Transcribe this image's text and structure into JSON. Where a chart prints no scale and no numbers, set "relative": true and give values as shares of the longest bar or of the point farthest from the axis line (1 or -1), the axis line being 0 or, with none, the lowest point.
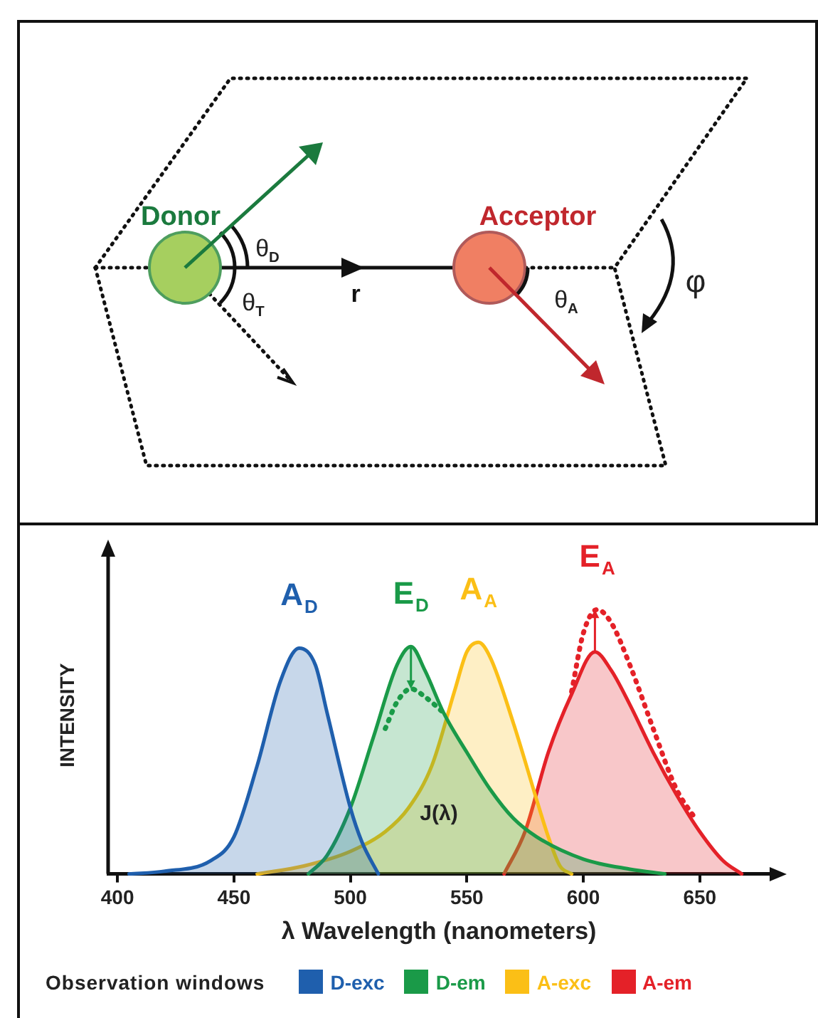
{
  "chart_data": [
    {
      "type": "other",
      "annotations": [
        "Donor",
        "θ$_{D}$",
        "θ$_{T}$",
        "r",
        "Acceptor",
        "θ$_{A}$",
        "φ"
      ]
    },
    {
      "type": "area",
      "relative": true,
      "xlabel": "λ Wavelength (nanometers)",
      "ylabel": "INTENSITY",
      "xlim": [
        396,
        680
      ],
      "xticks": [
        400,
        450,
        500,
        550,
        600,
        650
      ],
      "legend": "bottom",
      "legend_title": "Observation windows",
      "series": [
        {
          "name": "D-exc",
          "color": "#1f5fad",
          "x": [
            405,
            420,
            440,
            450,
            460,
            470,
            478,
            485,
            490,
            500,
            505,
            512
          ],
          "values": [
            0,
            0.01,
            0.05,
            0.14,
            0.41,
            0.73,
            0.854,
            0.79,
            0.61,
            0.25,
            0.12,
            0
          ]
        },
        {
          "name": "D-em",
          "color": "#1a9a48",
          "x": [
            482,
            490,
            500,
            510,
            520,
            526,
            532,
            540,
            550,
            560,
            570,
            580,
            600,
            620,
            635
          ],
          "values": [
            0,
            0.07,
            0.25,
            0.52,
            0.79,
            0.86,
            0.77,
            0.61,
            0.46,
            0.32,
            0.21,
            0.14,
            0.056,
            0.018,
            0
          ]
        },
        {
          "name": "A-exc",
          "color": "#fbbf16",
          "x": [
            460,
            480,
            500,
            515,
            525,
            535,
            545,
            550,
            555,
            560,
            570,
            580,
            585,
            590,
            595
          ],
          "values": [
            0,
            0.03,
            0.085,
            0.16,
            0.25,
            0.41,
            0.7,
            0.84,
            0.876,
            0.82,
            0.57,
            0.28,
            0.14,
            0.03,
            0
          ]
        },
        {
          "name": "A-em",
          "color": "#e42128",
          "x": [
            566,
            575,
            585,
            595,
            605,
            612,
            620,
            630,
            640,
            650,
            660,
            668
          ],
          "values": [
            0,
            0.16,
            0.46,
            0.68,
            0.84,
            0.77,
            0.64,
            0.46,
            0.3,
            0.16,
            0.05,
            0
          ]
        },
        {
          "type": "line",
          "line_style": "dotted",
          "color": "#1a9a48",
          "x": [
            515,
            520,
            526,
            532,
            540
          ],
          "values": [
            0.55,
            0.65,
            0.7,
            0.67,
            0.61
          ]
        },
        {
          "type": "line",
          "line_style": "dotted",
          "color": "#e42128",
          "x": [
            595,
            600,
            606,
            612,
            620,
            630,
            640,
            648
          ],
          "values": [
            0.69,
            0.91,
            1,
            0.95,
            0.79,
            0.55,
            0.32,
            0.21
          ]
        }
      ],
      "annotations": [
        {
          "text": "A$_{D}$",
          "x": 478,
          "y": 0.854
        },
        {
          "text": "E$_{D}$",
          "x": 526,
          "y": 0.86
        },
        {
          "text": "A$_{A}$",
          "x": 555,
          "y": 0.876
        },
        {
          "text": "E$_{A}$",
          "x": 606,
          "y": 1
        },
        "J(λ)"
      ]
    }
  ]
}
